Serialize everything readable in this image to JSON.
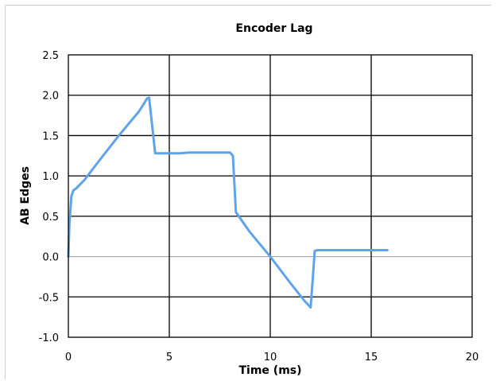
{
  "chart_data": {
    "type": "line",
    "title": "Encoder Lag",
    "xlabel": "Time (ms)",
    "ylabel": "AB Edges",
    "xlim": [
      0,
      20
    ],
    "ylim": [
      -1.0,
      2.5
    ],
    "x_ticks": [
      "0",
      "5",
      "10",
      "15",
      "20"
    ],
    "y_ticks": [
      "2.5",
      "2.0",
      "1.5",
      "1.0",
      "0.5",
      "0.0",
      "-0.5",
      "-1.0"
    ],
    "grid": true,
    "legend": "none",
    "series": [
      {
        "color": "#5fa3ea",
        "x": [
          0,
          0.05,
          0.15,
          0.25,
          0.4,
          0.8,
          1.5,
          2.5,
          3.5,
          3.9,
          4.0,
          4.3,
          5.5,
          6.0,
          7.0,
          8.0,
          8.15,
          8.3,
          9.0,
          10.0,
          11.0,
          11.7,
          12.0,
          12.1,
          12.2,
          12.35,
          14.0,
          15.8
        ],
        "y": [
          0.0,
          0.4,
          0.75,
          0.82,
          0.85,
          0.95,
          1.18,
          1.5,
          1.8,
          1.96,
          1.97,
          1.28,
          1.28,
          1.29,
          1.29,
          1.29,
          1.25,
          0.55,
          0.3,
          0.0,
          -0.33,
          -0.55,
          -0.63,
          -0.3,
          0.07,
          0.08,
          0.08,
          0.08
        ]
      }
    ]
  }
}
